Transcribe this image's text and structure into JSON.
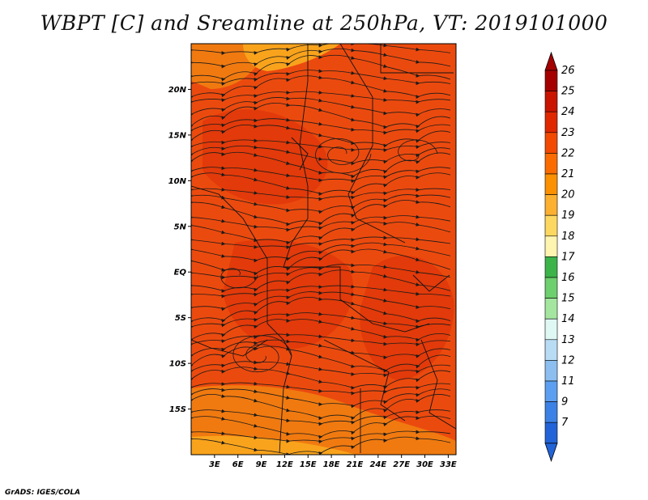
{
  "title": "WBPT [C] and Sreamline at 250hPa, VT: 2019101000",
  "footer": "GrADS: IGES/COLA",
  "map": {
    "lon_range": [
      0,
      34
    ],
    "lat_range": [
      -20,
      25
    ],
    "lon_ticks": [
      "3E",
      "6E",
      "9E",
      "12E",
      "15E",
      "18E",
      "21E",
      "24E",
      "27E",
      "30E",
      "33E"
    ],
    "lat_ticks": [
      "20N",
      "15N",
      "10N",
      "5N",
      "EQ",
      "5S",
      "10S",
      "15S"
    ],
    "field": "WBPT",
    "unit": "C",
    "level": "250hPa",
    "valid_time": "2019101000",
    "dominant_range": [
      22,
      24
    ]
  },
  "colorbar": {
    "labels": [
      "26",
      "25",
      "24",
      "23",
      "22",
      "21",
      "20",
      "19",
      "18",
      "17",
      "16",
      "15",
      "14",
      "13",
      "12",
      "11",
      "9",
      "7"
    ],
    "colors": [
      "#a50000",
      "#c81400",
      "#e02800",
      "#f24a00",
      "#fa6c00",
      "#fb9000",
      "#fbb030",
      "#fdd860",
      "#fff4b0",
      "#3cb44a",
      "#6dcf6d",
      "#a4e6a0",
      "#dff8f4",
      "#b9dcf5",
      "#8cbff0",
      "#5c9ff0",
      "#3c82e6",
      "#2264d8"
    ]
  },
  "colors": {
    "main_field": "#eb4a0e",
    "warm_patch": "#e23a0a",
    "cool_patch": "#f07a10",
    "cooler_patch": "#f9a31c",
    "streamline": "#1a1a1a"
  }
}
